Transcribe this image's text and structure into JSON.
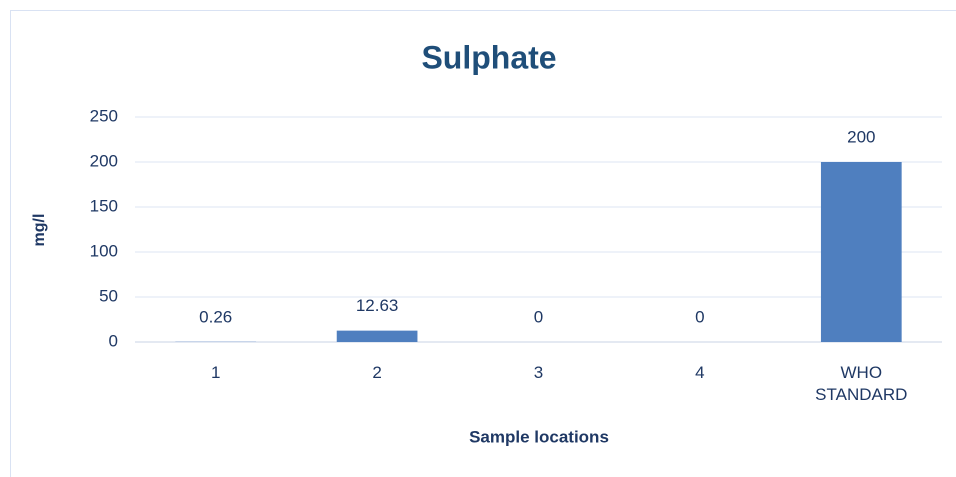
{
  "chart_data": {
    "type": "bar",
    "title": "Sulphate",
    "x_label": "Sample locations",
    "y_label": "mg/l",
    "categories": [
      "1",
      "2",
      "3",
      "4",
      "WHO STANDARD"
    ],
    "values": [
      0.26,
      12.63,
      0,
      0,
      200
    ],
    "color": "#4f7fbf",
    "ylim": [
      0,
      250
    ],
    "yticks": [
      0,
      50,
      100,
      150,
      200,
      250
    ],
    "grid": true
  }
}
